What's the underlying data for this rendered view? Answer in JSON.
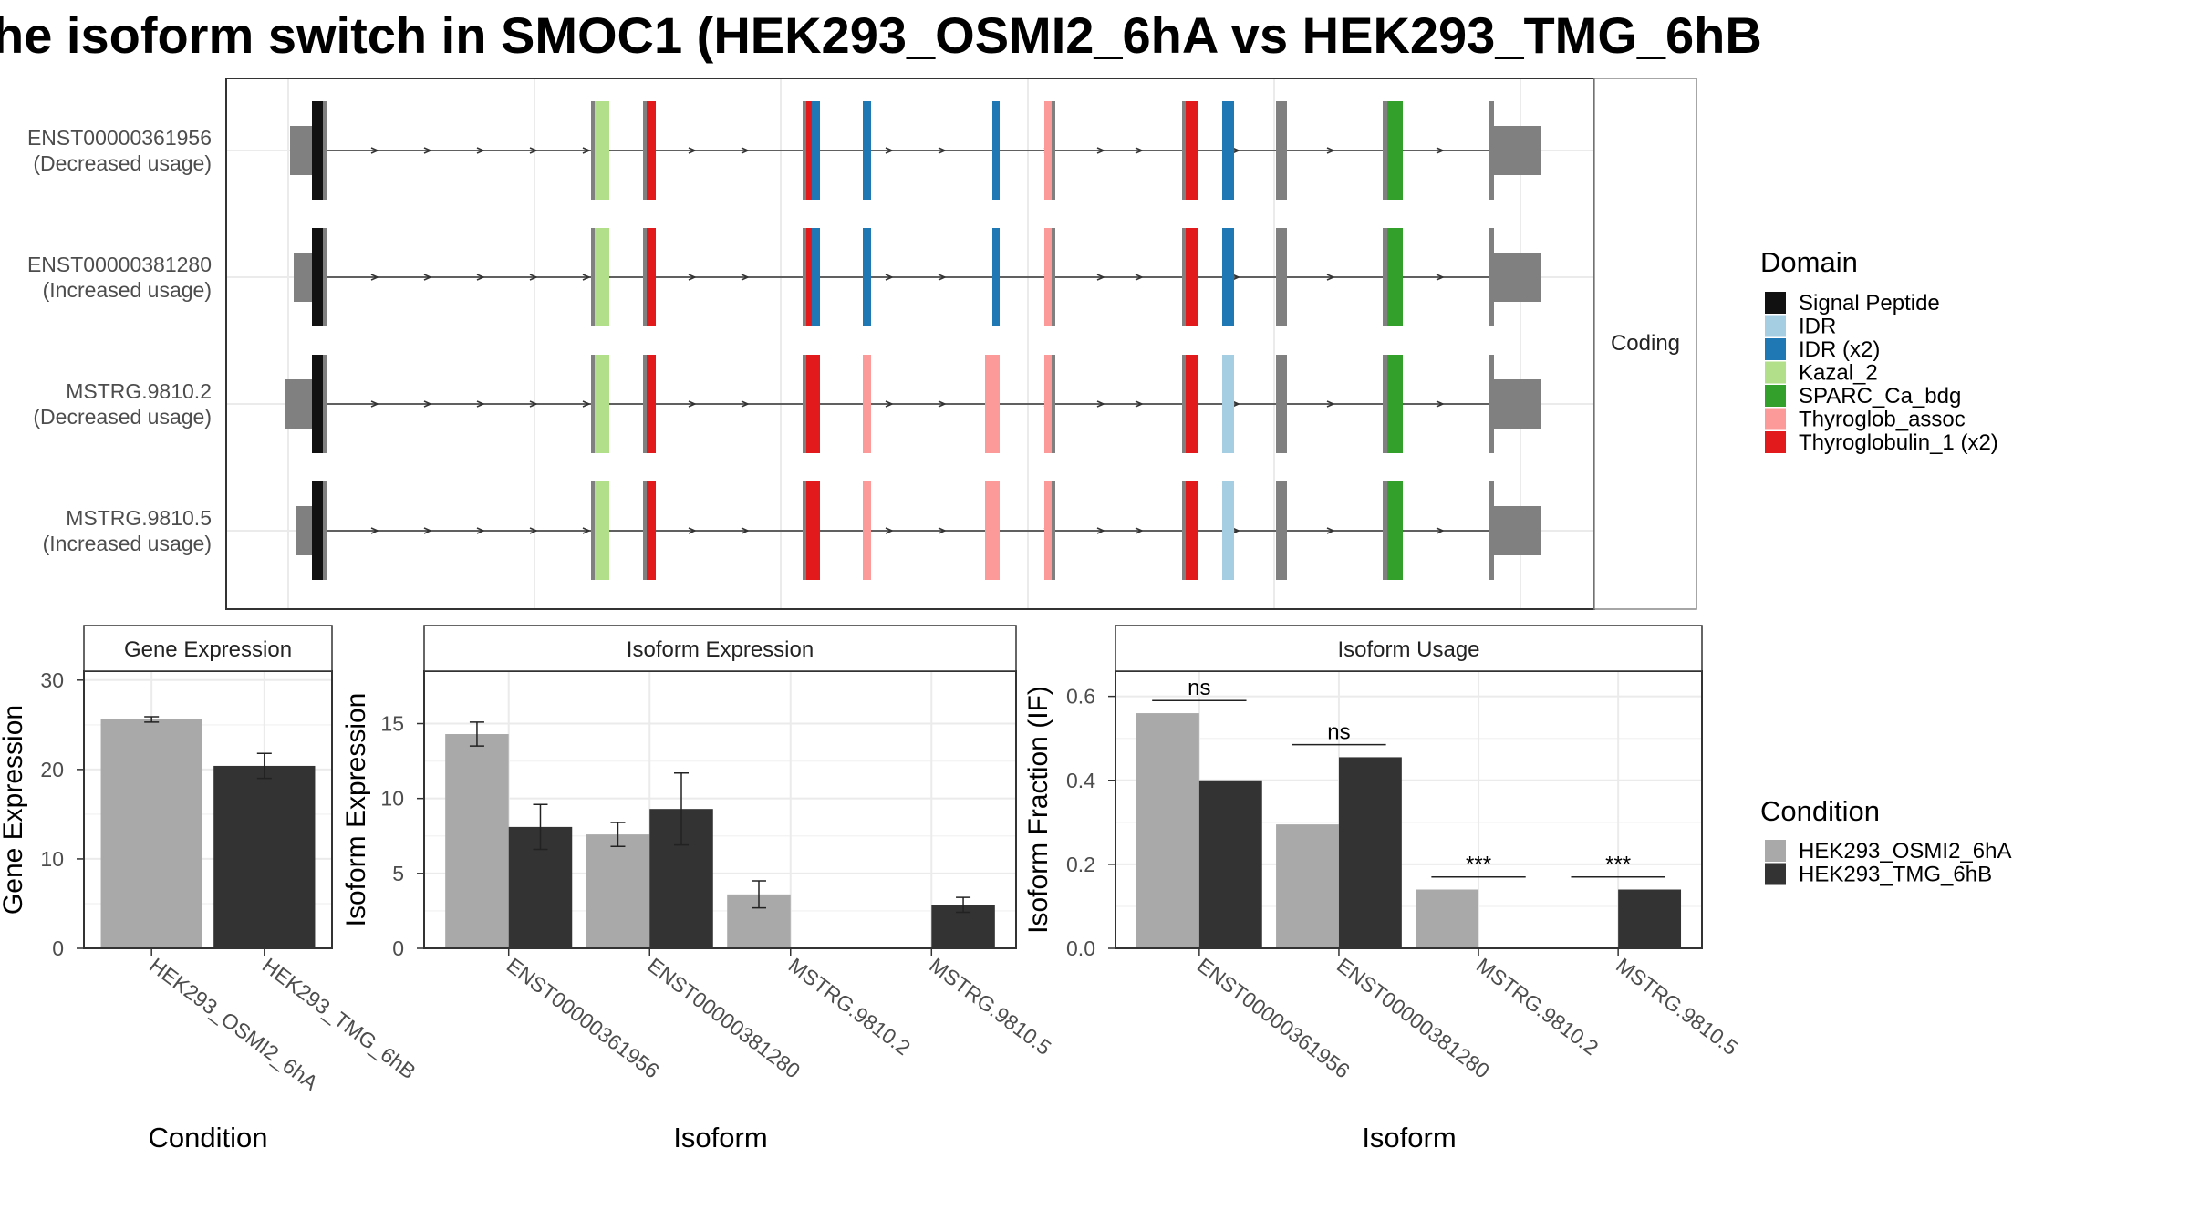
{
  "colors": {
    "utr": "#808080",
    "intron_line": "#333333",
    "grid": "#ebebeb",
    "border": "#333333",
    "strip_border": "#888888",
    "strip_fill": "#ffffff",
    "cond_a": "#a9a9a9",
    "cond_b": "#333333",
    "text": "#222222",
    "axis_text": "#4d4d4d"
  },
  "title": "he isoform switch in SMOC1 (HEK293_OSMI2_6hA vs HEK293_TMG_6hB",
  "structure": {
    "facet_label": "Coding",
    "transcripts": [
      {
        "id": "ENST00000361956",
        "note": "(Decreased usage)"
      },
      {
        "id": "ENST00000381280",
        "note": "(Increased usage)"
      },
      {
        "id": "MSTRG.9810.2",
        "note": "(Decreased usage)"
      },
      {
        "id": "MSTRG.9810.5",
        "note": "(Increased usage)"
      }
    ]
  },
  "domain_legend": {
    "title": "Domain",
    "items": [
      {
        "label": "Signal Peptide",
        "color": "#111111"
      },
      {
        "label": "IDR",
        "color": "#a6cee3"
      },
      {
        "label": "IDR (x2)",
        "color": "#1f78b4"
      },
      {
        "label": "Kazal_2",
        "color": "#b2df8a"
      },
      {
        "label": "SPARC_Ca_bdg",
        "color": "#33a02c"
      },
      {
        "label": "Thyroglob_assoc",
        "color": "#fb9a99"
      },
      {
        "label": "Thyroglobulin_1 (x2)",
        "color": "#e31a1c"
      }
    ]
  },
  "condition_legend": {
    "title": "Condition",
    "items": [
      {
        "label": "HEK293_OSMI2_6hA",
        "color": "#a9a9a9"
      },
      {
        "label": "HEK293_TMG_6hB",
        "color": "#333333"
      }
    ]
  },
  "chart_data": [
    {
      "type": "bar",
      "title": "Gene Expression",
      "xlabel": "Condition",
      "ylabel": "Gene Expression",
      "ylim": [
        0,
        31
      ],
      "yticks": [
        0,
        10,
        20,
        30
      ],
      "categories": [
        "HEK293_OSMI2_6hA",
        "HEK293_TMG_6hB"
      ],
      "series": [
        {
          "name": "HEK293_OSMI2_6hA",
          "values": [
            25.6,
            null
          ],
          "err": [
            0.3,
            null
          ]
        },
        {
          "name": "HEK293_TMG_6hB",
          "values": [
            null,
            20.4
          ],
          "err": [
            null,
            1.4
          ]
        }
      ],
      "grid": true
    },
    {
      "type": "bar",
      "title": "Isoform Expression",
      "xlabel": "Isoform",
      "ylabel": "Isoform Expression",
      "ylim": [
        0,
        18.5
      ],
      "yticks": [
        0,
        5,
        10,
        15
      ],
      "categories": [
        "ENST00000361956",
        "ENST00000381280",
        "MSTRG.9810.2",
        "MSTRG.9810.5"
      ],
      "series": [
        {
          "name": "HEK293_OSMI2_6hA",
          "values": [
            14.3,
            7.6,
            3.6,
            0
          ],
          "err": [
            0.8,
            0.8,
            0.9,
            0
          ]
        },
        {
          "name": "HEK293_TMG_6hB",
          "values": [
            8.1,
            9.3,
            0,
            2.9
          ],
          "err": [
            1.5,
            2.4,
            0,
            0.5
          ]
        }
      ],
      "grid": true
    },
    {
      "type": "bar",
      "title": "Isoform Usage",
      "xlabel": "Isoform",
      "ylabel": "Isoform Fraction (IF)",
      "ylim": [
        0,
        0.66
      ],
      "yticks": [
        0.0,
        0.2,
        0.4,
        0.6
      ],
      "ytick_labels": [
        "0.0",
        "0.2",
        "0.4",
        "0.6"
      ],
      "categories": [
        "ENST00000361956",
        "ENST00000381280",
        "MSTRG.9810.2",
        "MSTRG.9810.5"
      ],
      "series": [
        {
          "name": "HEK293_OSMI2_6hA",
          "values": [
            0.56,
            0.295,
            0.14,
            0
          ]
        },
        {
          "name": "HEK293_TMG_6hB",
          "values": [
            0.4,
            0.455,
            0,
            0.14
          ]
        }
      ],
      "annotations": [
        {
          "category": "ENST00000361956",
          "text": "ns",
          "y": 0.59
        },
        {
          "category": "ENST00000381280",
          "text": "ns",
          "y": 0.485
        },
        {
          "category": "MSTRG.9810.2",
          "text": "***",
          "y": 0.17
        },
        {
          "category": "MSTRG.9810.5",
          "text": "***",
          "y": 0.17
        }
      ],
      "grid": true
    }
  ]
}
